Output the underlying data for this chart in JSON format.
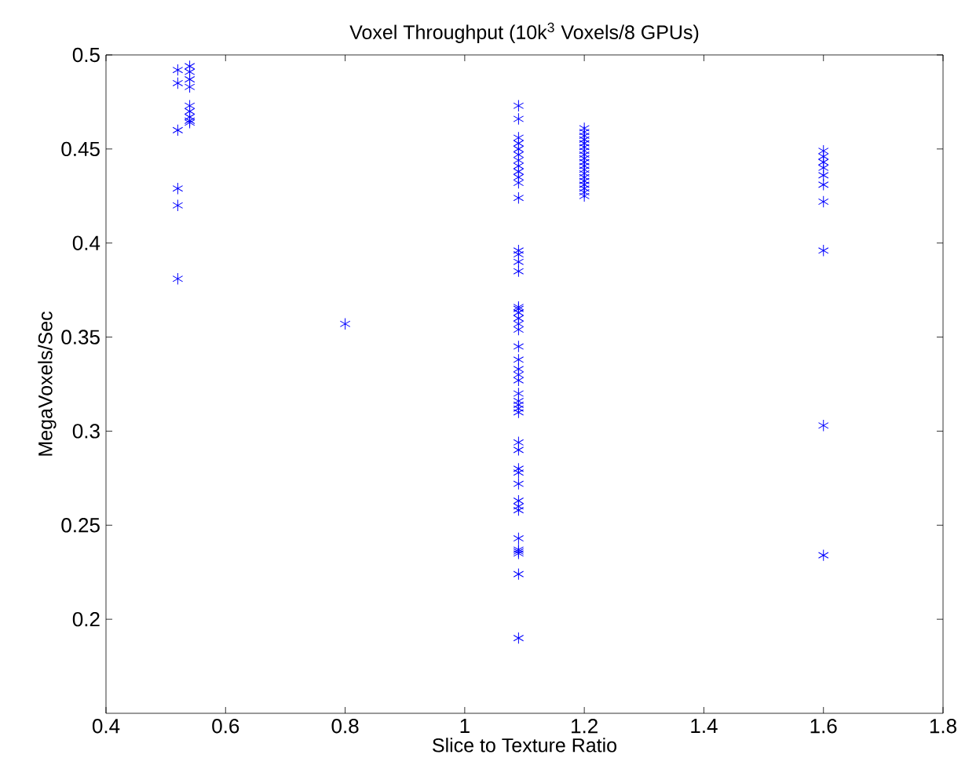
{
  "chart_data": {
    "type": "scatter",
    "title": "Voxel Throughput (10k$^{3}$ Voxels/8 GPUs)",
    "xlabel": "Slice to Texture Ratio",
    "ylabel": "MegaVoxels/Sec",
    "color": "#0000ff",
    "marker": "cross",
    "xlim": [
      0.4,
      1.8
    ],
    "xticks": [
      0.4,
      0.6,
      0.8,
      1,
      1.2,
      1.4,
      1.6,
      1.8
    ],
    "ylim": [
      0.15,
      0.5
    ],
    "yticks": [
      0.2,
      0.25,
      0.3,
      0.35,
      0.4,
      0.45,
      0.5
    ],
    "x": [
      0.52,
      0.52,
      0.52,
      0.52,
      0.52,
      0.52,
      0.54,
      0.54,
      0.54,
      0.54,
      0.54,
      0.54,
      0.54,
      0.54,
      0.54,
      0.8,
      1.09,
      1.09,
      1.09,
      1.09,
      1.09,
      1.09,
      1.09,
      1.09,
      1.09,
      1.09,
      1.09,
      1.09,
      1.09,
      1.09,
      1.09,
      1.09,
      1.09,
      1.09,
      1.09,
      1.09,
      1.09,
      1.09,
      1.09,
      1.09,
      1.09,
      1.09,
      1.09,
      1.09,
      1.09,
      1.09,
      1.09,
      1.09,
      1.09,
      1.09,
      1.09,
      1.09,
      1.09,
      1.09,
      1.09,
      1.09,
      1.09,
      1.09,
      1.09,
      1.09,
      1.09,
      1.09,
      1.2,
      1.2,
      1.2,
      1.2,
      1.2,
      1.2,
      1.2,
      1.2,
      1.2,
      1.2,
      1.2,
      1.2,
      1.2,
      1.2,
      1.2,
      1.2,
      1.2,
      1.2,
      1.2,
      1.6,
      1.6,
      1.6,
      1.6,
      1.6,
      1.6,
      1.6,
      1.6,
      1.6,
      1.6
    ],
    "values": [
      0.492,
      0.485,
      0.46,
      0.429,
      0.42,
      0.381,
      0.494,
      0.491,
      0.487,
      0.483,
      0.473,
      0.47,
      0.467,
      0.465,
      0.464,
      0.357,
      0.473,
      0.466,
      0.456,
      0.453,
      0.45,
      0.447,
      0.444,
      0.441,
      0.438,
      0.435,
      0.432,
      0.424,
      0.396,
      0.394,
      0.39,
      0.385,
      0.366,
      0.365,
      0.363,
      0.36,
      0.357,
      0.354,
      0.345,
      0.338,
      0.333,
      0.33,
      0.327,
      0.32,
      0.316,
      0.314,
      0.312,
      0.31,
      0.294,
      0.29,
      0.28,
      0.278,
      0.272,
      0.263,
      0.26,
      0.258,
      0.243,
      0.237,
      0.236,
      0.235,
      0.224,
      0.19,
      0.461,
      0.459,
      0.457,
      0.455,
      0.453,
      0.451,
      0.449,
      0.447,
      0.445,
      0.443,
      0.441,
      0.439,
      0.437,
      0.435,
      0.433,
      0.431,
      0.429,
      0.427,
      0.425,
      0.449,
      0.446,
      0.443,
      0.44,
      0.436,
      0.431,
      0.422,
      0.396,
      0.303,
      0.234
    ]
  }
}
